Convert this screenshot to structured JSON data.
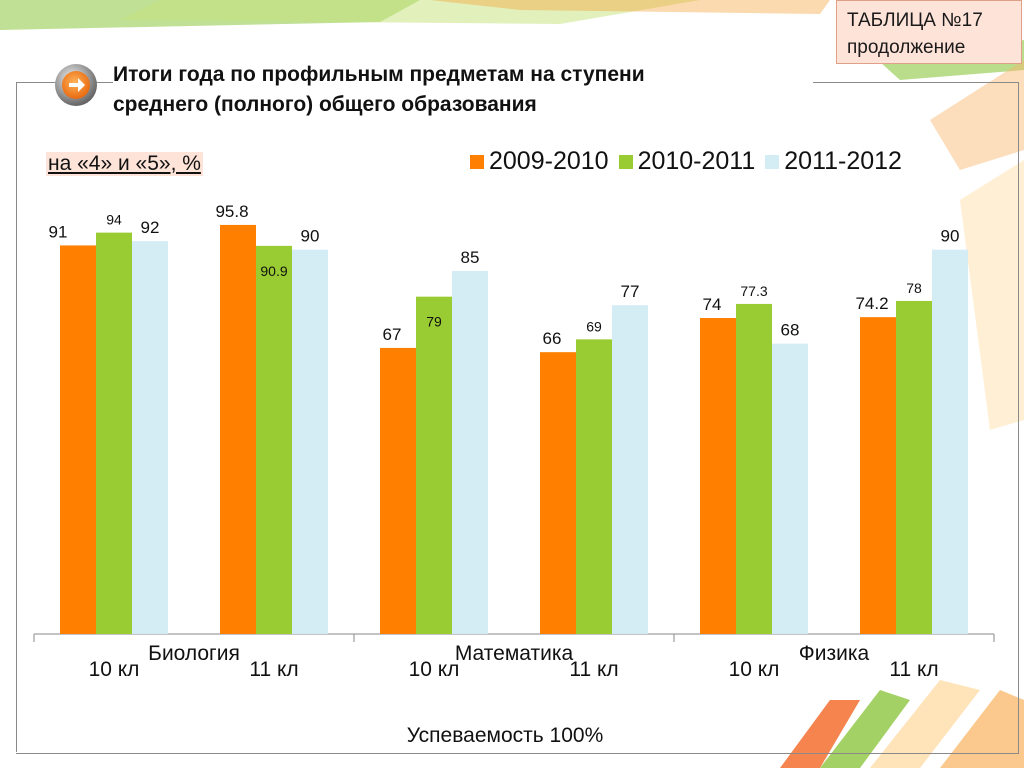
{
  "corner_box": {
    "line1": "ТАБЛИЦА №17",
    "line2": "продолжение"
  },
  "title": {
    "line1": "Итоги года по профильным  предметам на ступени",
    "line2": "среднего (полного) общего образования"
  },
  "subtitle": "на «4» и «5», %",
  "footnote": "Успеваемость 100%",
  "colors": {
    "s2009": "#ff7f00",
    "s2010": "#99cc33",
    "s2011": "#d4ecf4",
    "accent": "#f47c20"
  },
  "nav_icon": "arrow-right-icon",
  "chart_data": {
    "type": "bar",
    "categories": [
      "10 кл",
      "11 кл",
      "10 кл",
      "11 кл",
      "10 кл",
      "11 кл"
    ],
    "groups": [
      {
        "name": "Биология",
        "categories": [
          0,
          1
        ]
      },
      {
        "name": "Математика",
        "categories": [
          2,
          3
        ]
      },
      {
        "name": "Физика",
        "categories": [
          4,
          5
        ]
      }
    ],
    "series": [
      {
        "name": "2009-2010",
        "color": "#ff7f00",
        "values": [
          91,
          95.8,
          67,
          66,
          74,
          74.2
        ]
      },
      {
        "name": "2010-2011",
        "color": "#99cc33",
        "values": [
          94,
          90.9,
          79,
          69,
          77.3,
          78
        ]
      },
      {
        "name": "2011-2012",
        "color": "#d4ecf4",
        "values": [
          92,
          90,
          85,
          77,
          68,
          90
        ]
      }
    ],
    "ylim": [
      0,
      100
    ],
    "grid": false,
    "legend": "top-right"
  }
}
